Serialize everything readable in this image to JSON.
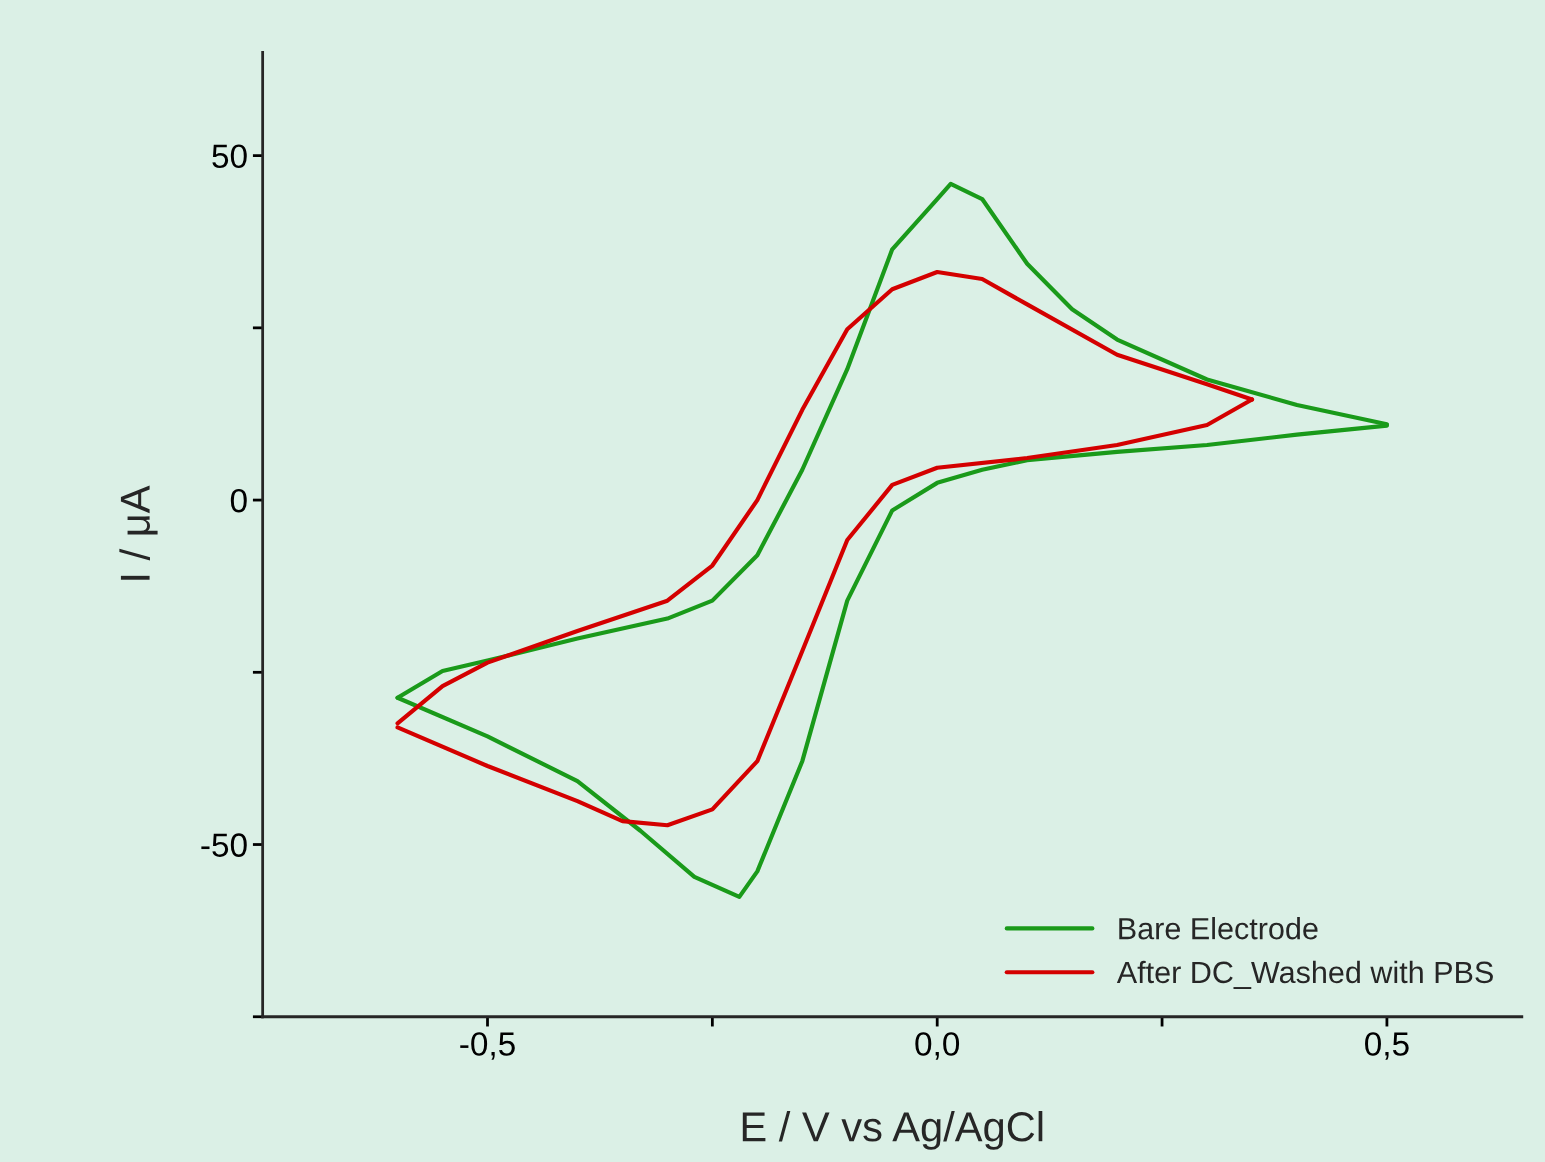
{
  "chart_data": {
    "type": "line",
    "xlabel": "E / V vs Ag/AgCl",
    "ylabel": "I / μA",
    "xlim": [
      -0.75,
      0.65
    ],
    "ylim": [
      -75,
      65
    ],
    "xticks": [
      {
        "value": -0.5,
        "label": "-0,5"
      },
      {
        "value": -0.25,
        "label": null
      },
      {
        "value": 0.0,
        "label": "0,0"
      },
      {
        "value": 0.25,
        "label": null
      },
      {
        "value": 0.5,
        "label": "0,5"
      }
    ],
    "yticks": [
      {
        "value": -75,
        "label": null
      },
      -50,
      {
        "value": -25,
        "label": null
      },
      0,
      {
        "value": 25,
        "label": null
      },
      50
    ],
    "grid": false,
    "legend": "bottom right",
    "series": [
      {
        "name": "Bare Electrode",
        "color": "#1a9a1a",
        "x": [
          -0.6,
          -0.55,
          -0.5,
          -0.4,
          -0.3,
          -0.25,
          -0.2,
          -0.15,
          -0.1,
          -0.05,
          0.0,
          0.015,
          0.05,
          0.1,
          0.15,
          0.2,
          0.3,
          0.4,
          0.5
        ],
        "values": [
          -28.7,
          -24.8,
          -23.3,
          -20.1,
          -17.2,
          -14.6,
          -8,
          4.4,
          19,
          36.4,
          43.7,
          45.9,
          43.7,
          34.3,
          27.7,
          23.3,
          17.5,
          13.8,
          11
        ]
      },
      {
        "color": "#1a9a1a",
        "x": [
          -0.6,
          -0.5,
          -0.4,
          -0.33,
          -0.27,
          -0.22,
          -0.2,
          -0.15,
          -0.1,
          -0.05,
          0.0,
          0.05,
          0.1,
          0.2,
          0.3,
          0.4,
          0.5
        ],
        "values": [
          -28.7,
          -34.3,
          -40.8,
          -48,
          -54.7,
          -57.6,
          -53.9,
          -37.9,
          -14.6,
          -1.5,
          2.5,
          4.4,
          5.8,
          7.0,
          8.0,
          9.5,
          10.8
        ]
      },
      {
        "name": "After DC_Washed with PBS",
        "color": "#d40000",
        "x": [
          -0.6,
          -0.55,
          -0.5,
          -0.4,
          -0.3,
          -0.25,
          -0.2,
          -0.15,
          -0.1,
          -0.05,
          0.0,
          0.05,
          0.1,
          0.2,
          0.3,
          0.35
        ],
        "values": [
          -32.4,
          -27,
          -23.6,
          -19,
          -14.6,
          -9.5,
          0,
          13.1,
          24.8,
          30.6,
          33.1,
          32.1,
          28.4,
          21.1,
          16.8,
          14.6
        ]
      },
      {
        "color": "#d40000",
        "x": [
          -0.6,
          -0.5,
          -0.4,
          -0.35,
          -0.3,
          -0.25,
          -0.2,
          -0.15,
          -0.1,
          -0.05,
          0.0,
          0.1,
          0.2,
          0.3,
          0.35
        ],
        "values": [
          -33.0,
          -38.6,
          -43.7,
          -46.6,
          -47.2,
          -44.9,
          -37.9,
          -21.9,
          -5.8,
          2.2,
          4.7,
          6.1,
          8.0,
          10.9,
          14.6
        ]
      }
    ]
  }
}
